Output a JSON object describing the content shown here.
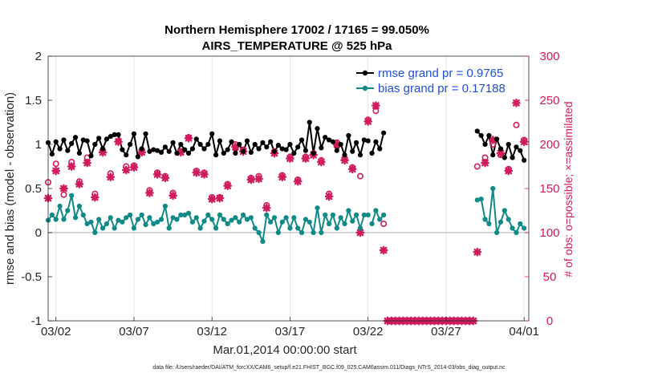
{
  "chart_data": {
    "type": "line",
    "title": "Northern Hemisphere 17002 / 17165 = 99.050%",
    "subtitle": "AIRS_TEMPERATURE @ 525 hPa",
    "xlabel": "Mar.01,2014 00:00:00 start",
    "ylabel": "rmse and bias (model - observation)",
    "y2label": "# of obs: o=possible; ×=assimilated",
    "footer": "data file: /Users/raeder/DAI/ATM_forcXX/CAM6_setup/f.e21.FHIST_BGC.f09_025.CAM6assim.011/Diags_NTrS_2014-03/obs_diag_output.nc",
    "x_range": [
      0.5,
      31.3
    ],
    "ylim": [
      -1,
      2
    ],
    "y2lim": [
      0,
      300
    ],
    "x_ticks": [
      1,
      6,
      11,
      16,
      21,
      26,
      31
    ],
    "x_tick_labels": [
      "03/02",
      "03/07",
      "03/12",
      "03/17",
      "03/22",
      "03/27",
      "04/01"
    ],
    "y_ticks": [
      -1,
      -0.5,
      0,
      0.5,
      1,
      1.5,
      2
    ],
    "y_tick_labels": [
      "-1",
      "-0.5",
      "0",
      "0.5",
      "1",
      "1.5",
      "2"
    ],
    "y2_ticks": [
      0,
      50,
      100,
      150,
      200,
      250,
      300
    ],
    "y2_tick_labels": [
      "0",
      "50",
      "100",
      "150",
      "200",
      "250",
      "300"
    ],
    "legend": {
      "position": "top-right",
      "entries": [
        "rmse grand pr = 0.9765",
        "bias grand pr = 0.17188"
      ]
    },
    "colors": {
      "rmse": "#000000",
      "bias": "#0f8a87",
      "obs": "#d01c5f",
      "zero": "#c8c8c8",
      "grid": "#e8e8e8"
    },
    "series": [
      {
        "name": "rmse",
        "segments": [
          {
            "x": [
              0.5,
              0.75,
              1.0,
              1.25,
              1.5,
              1.75,
              2.0,
              2.25,
              2.5,
              2.75,
              3.0,
              3.25,
              3.5,
              3.75,
              4.0,
              4.25,
              4.5,
              4.75,
              5.0,
              5.25,
              5.5,
              5.75,
              6.0,
              6.25,
              6.5,
              6.75,
              7.0,
              7.25,
              7.5,
              7.75,
              8.0,
              8.25,
              8.5,
              8.75,
              9.0,
              9.25,
              9.5,
              9.75,
              10.0,
              10.25,
              10.5,
              10.75,
              11.0,
              11.25,
              11.5,
              11.75,
              12.0,
              12.25,
              12.5,
              12.75,
              13.0,
              13.25,
              13.5,
              13.75,
              14.0,
              14.25,
              14.5,
              14.75,
              15.0,
              15.25,
              15.5,
              15.75,
              16.0,
              16.25,
              16.5,
              16.75,
              17.0,
              17.25,
              17.5,
              17.75,
              18.0,
              18.25,
              18.5,
              18.75,
              19.0,
              19.25,
              19.5,
              19.75,
              20.0,
              20.25,
              20.5,
              20.75,
              21.0
            ],
            "y": [
              1.02,
              0.89,
              1.03,
              0.95,
              1.05,
              0.93,
              1.01,
              1.08,
              0.9,
              1.05,
              1.04,
              0.87,
              1.0,
              1.07,
              0.95,
              1.06,
              1.09,
              1.11,
              1.11,
              0.94,
              0.88,
              1.0,
              1.12,
              0.86,
              0.95,
              1.12,
              0.92,
              0.94,
              0.93,
              0.91,
              0.97,
              0.92,
              1.02,
              0.9,
              1.0,
              0.94,
              0.9,
              0.95,
              1.06,
              1.0,
              0.95,
              1.0,
              1.12,
              0.88,
              1.04,
              0.9,
              0.94,
              1.03,
              0.9,
              1.0,
              0.92,
              1.04,
              0.91,
              1.0,
              0.95,
              1.02,
              0.97,
              1.03,
              0.92,
              0.99,
              0.95,
              0.94,
              1.0,
              0.9,
              0.97,
              1.05,
              0.93,
              1.25,
              0.9,
              1.18,
              0.96,
              1.08,
              1.05,
              1.03,
              0.93,
              1.0,
              0.88,
              1.1,
              0.92,
              1.02,
              0.88,
              1.05,
              1.04
            ]
          },
          {
            "x": [
              21.25,
              21.5,
              21.75,
              22.0
            ],
            "y": [
              0.9,
              1.03,
              0.95,
              1.13
            ]
          },
          {
            "x": [
              28.0,
              28.25,
              28.5,
              28.75,
              29.0,
              29.25,
              29.5,
              29.75,
              30.0,
              30.25,
              30.5,
              30.75,
              31.0
            ],
            "y": [
              1.15,
              1.1,
              1.0,
              1.1,
              0.88,
              1.06,
              0.95,
              0.85,
              1.0,
              0.85,
              0.97,
              0.93,
              0.82
            ]
          }
        ]
      },
      {
        "name": "bias",
        "segments": [
          {
            "x": [
              0.5,
              0.75,
              1.0,
              1.25,
              1.5,
              1.75,
              2.0,
              2.25,
              2.5,
              2.75,
              3.0,
              3.25,
              3.5,
              3.75,
              4.0,
              4.25,
              4.5,
              4.75,
              5.0,
              5.25,
              5.5,
              5.75,
              6.0,
              6.25,
              6.5,
              6.75,
              7.0,
              7.25,
              7.5,
              7.75,
              8.0,
              8.25,
              8.5,
              8.75,
              9.0,
              9.25,
              9.5,
              9.75,
              10.0,
              10.25,
              10.5,
              10.75,
              11.0,
              11.25,
              11.5,
              11.75,
              12.0,
              12.25,
              12.5,
              12.75,
              13.0,
              13.25,
              13.5,
              13.75,
              14.0,
              14.25,
              14.5,
              14.75,
              15.0,
              15.25,
              15.5,
              15.75,
              16.0,
              16.25,
              16.5,
              16.75,
              17.0,
              17.25,
              17.5,
              17.75,
              18.0,
              18.25,
              18.5,
              18.75,
              19.0,
              19.25,
              19.5,
              19.75,
              20.0,
              20.25,
              20.5,
              20.75,
              21.0
            ],
            "y": [
              0.14,
              0.2,
              0.15,
              0.3,
              0.15,
              0.25,
              0.42,
              0.17,
              0.3,
              0.2,
              0.1,
              0.12,
              0.0,
              0.15,
              0.05,
              0.1,
              0.17,
              0.05,
              0.14,
              0.12,
              0.17,
              0.2,
              0.05,
              0.15,
              0.2,
              0.09,
              0.17,
              0.1,
              0.12,
              0.15,
              0.3,
              0.05,
              0.17,
              0.15,
              0.2,
              0.2,
              0.22,
              0.12,
              0.17,
              0.05,
              0.13,
              0.2,
              0.15,
              0.05,
              0.2,
              0.15,
              0.1,
              0.14,
              0.17,
              0.12,
              0.2,
              0.15,
              0.17,
              0.05,
              0.0,
              -0.1,
              0.2,
              0.12,
              0.17,
              0.0,
              0.12,
              0.17,
              0.05,
              0.17,
              0.05,
              0.0,
              0.15,
              0.12,
              0.0,
              0.28,
              0.0,
              0.2,
              0.1,
              0.2,
              0.05,
              0.17,
              0.1,
              0.25,
              0.13,
              0.2,
              0.05,
              0.2,
              0.2
            ]
          },
          {
            "x": [
              21.25,
              21.5,
              21.75,
              22.0
            ],
            "y": [
              0.1,
              0.25,
              0.15,
              0.2
            ]
          },
          {
            "x": [
              28.0,
              28.25,
              28.5,
              28.75,
              29.0,
              29.25,
              29.5,
              29.75,
              30.0,
              30.25,
              30.5,
              30.75,
              31.0
            ],
            "y": [
              0.37,
              0.38,
              0.15,
              0.1,
              0.5,
              0.0,
              0.12,
              0.25,
              0.15,
              0.05,
              0.0,
              0.1,
              0.05
            ]
          }
        ]
      }
    ],
    "obs_possible": {
      "x": [
        0.5,
        1.0,
        1.5,
        2.0,
        2.5,
        3.0,
        3.5,
        4.0,
        4.5,
        5.0,
        5.5,
        6.0,
        6.5,
        7.0,
        7.5,
        8.0,
        8.5,
        9.0,
        9.5,
        10.0,
        10.5,
        11.0,
        11.5,
        12.0,
        12.5,
        13.0,
        13.5,
        14.0,
        14.5,
        15.0,
        15.5,
        16.0,
        16.5,
        17.0,
        17.5,
        18.0,
        18.5,
        19.0,
        19.5,
        20.0,
        20.5,
        21.0,
        21.5,
        22.0,
        28.0,
        28.5,
        29.0,
        29.5,
        30.0,
        30.5,
        31.0
      ],
      "y": [
        157,
        178,
        143,
        180,
        158,
        185,
        144,
        192,
        167,
        204,
        175,
        176,
        193,
        148,
        168,
        164,
        145,
        192,
        208,
        170,
        168,
        140,
        140,
        155,
        200,
        194,
        162,
        164,
        131,
        192,
        165,
        186,
        160,
        186,
        190,
        182,
        144,
        202,
        184,
        174,
        164,
        228,
        238,
        110,
        175,
        185,
        200,
        188,
        172,
        222,
        205
      ]
    },
    "obs_assimilated": {
      "x": [
        0.5,
        1.0,
        1.5,
        2.0,
        2.5,
        3.0,
        3.5,
        4.0,
        4.5,
        5.0,
        5.5,
        6.0,
        6.5,
        7.0,
        7.5,
        8.0,
        8.5,
        9.0,
        9.5,
        10.0,
        10.5,
        11.0,
        11.5,
        12.0,
        12.5,
        13.0,
        13.5,
        14.0,
        14.5,
        15.0,
        15.5,
        16.0,
        16.5,
        17.0,
        17.5,
        18.0,
        18.5,
        19.0,
        19.5,
        20.0,
        20.5,
        21.0,
        21.5,
        22.0,
        22.25,
        22.5,
        22.75,
        23.0,
        23.25,
        23.5,
        23.75,
        24.0,
        24.25,
        24.5,
        24.75,
        25.0,
        25.25,
        25.5,
        25.75,
        26.0,
        26.25,
        26.5,
        26.75,
        27.0,
        27.25,
        27.5,
        27.75,
        28.0,
        28.5,
        29.0,
        29.5,
        30.0,
        30.5,
        31.0
      ],
      "y": [
        139,
        170,
        150,
        175,
        155,
        179,
        140,
        191,
        163,
        203,
        171,
        174,
        191,
        145,
        166,
        162,
        142,
        191,
        207,
        168,
        166,
        138,
        139,
        153,
        197,
        192,
        160,
        161,
        128,
        190,
        163,
        184,
        158,
        184,
        188,
        180,
        141,
        200,
        182,
        172,
        100,
        226,
        244,
        80,
        0,
        0,
        0,
        0,
        0,
        0,
        0,
        0,
        0,
        0,
        0,
        0,
        0,
        0,
        0,
        0,
        0,
        0,
        0,
        0,
        0,
        0,
        0,
        78,
        179,
        205,
        190,
        170,
        247,
        203
      ]
    }
  }
}
